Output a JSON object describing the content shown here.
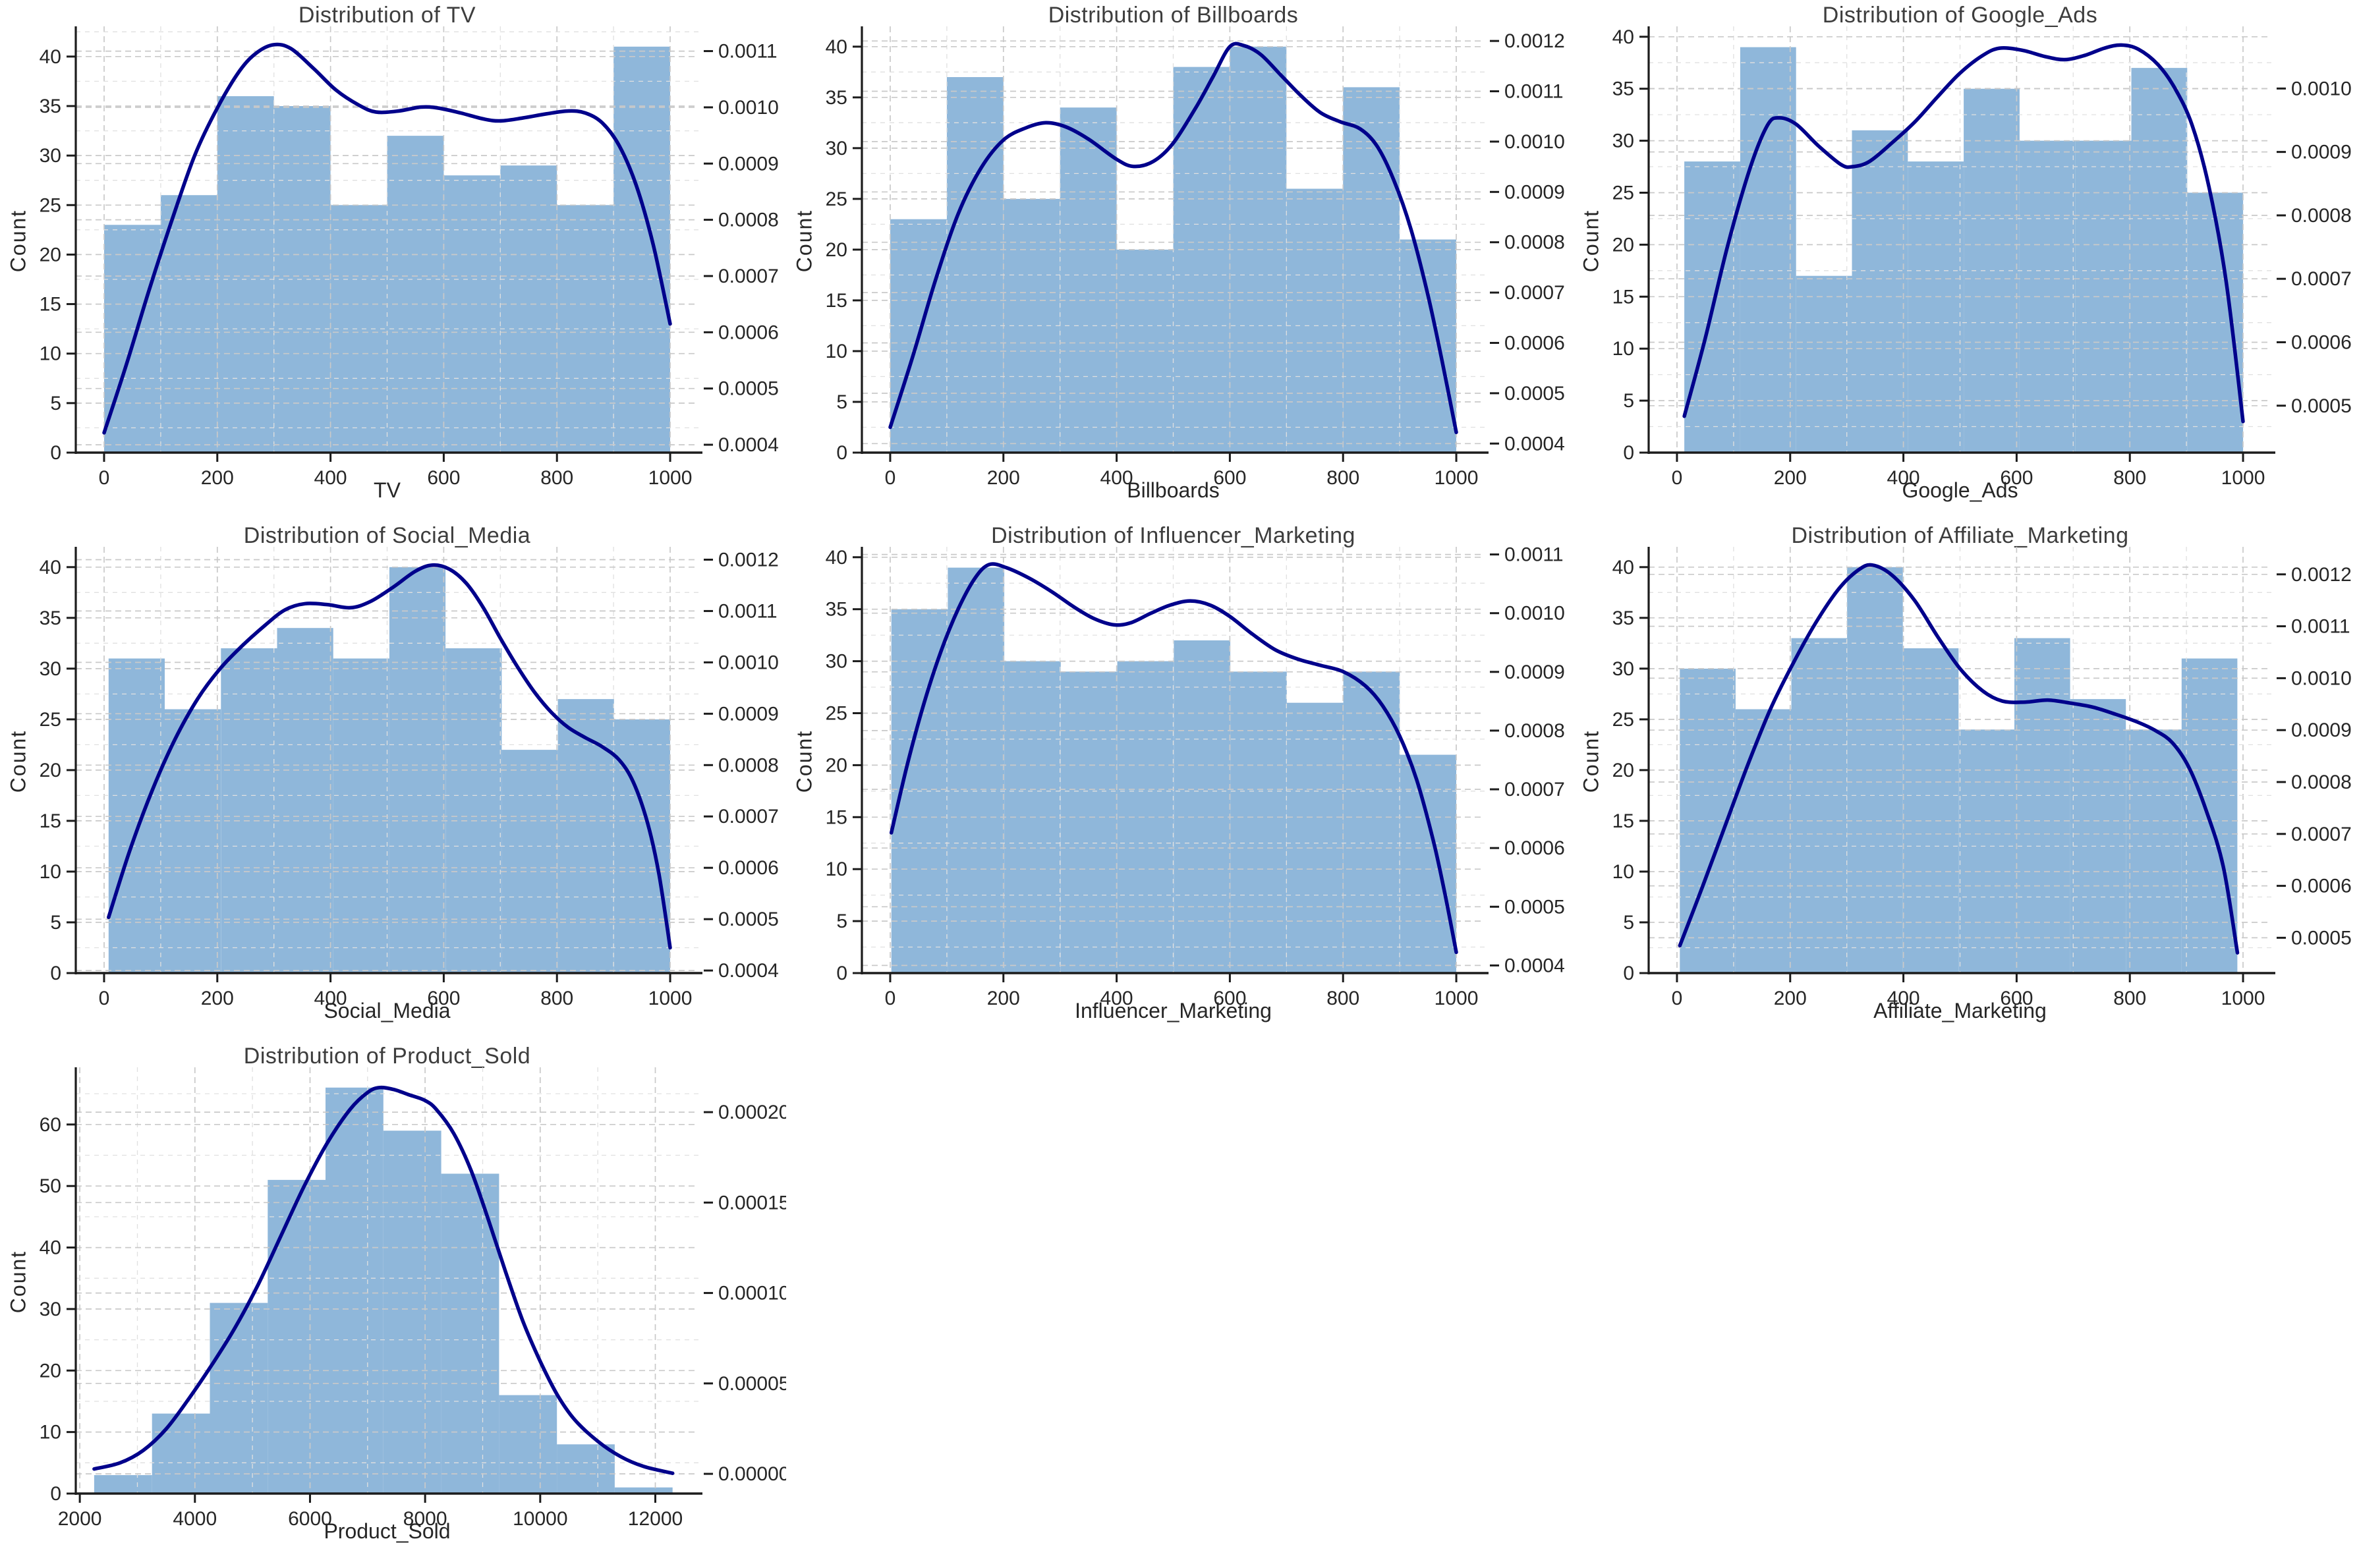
{
  "style": {
    "background": "#ffffff",
    "bar_color": "#8fb7da",
    "kde_color": "#00008b",
    "grid_major": "#c9c9c9",
    "grid_minor": "#e0e0e0",
    "spine_color": "#1c1c1c",
    "tick_text_color": "#262626",
    "title_color": "#3d3d3d"
  },
  "chart_data": [
    {
      "type": "bar",
      "subtype": "histogram_with_kde",
      "title": "Distribution of TV",
      "xlabel": "TV",
      "ylabel_left": "Count",
      "legend": "none",
      "grid": "dashed major and minor",
      "xlim": [
        -50,
        1050
      ],
      "x_ticks": [
        0,
        200,
        400,
        600,
        800,
        1000
      ],
      "x_minor_step": 100,
      "ylim_left": [
        0,
        43.05
      ],
      "y_ticks_left": [
        0,
        5,
        10,
        15,
        20,
        25,
        30,
        35,
        40
      ],
      "y_minor_step_left": 2.5,
      "ylim_right": [
        0.000386,
        0.001144
      ],
      "y_ticks_right": [
        0.0004,
        0.0005,
        0.0006,
        0.0007,
        0.0008,
        0.0009,
        0.001,
        0.0011
      ],
      "right_decimals": 4,
      "bin_start": 0,
      "bin_end": 1000,
      "counts": [
        23,
        26,
        36,
        35,
        25,
        32,
        28,
        29,
        25,
        41
      ],
      "kde_points_left_units": [
        [
          0,
          2
        ],
        [
          40,
          9
        ],
        [
          80,
          16.5
        ],
        [
          120,
          23.5
        ],
        [
          160,
          30
        ],
        [
          200,
          34.8
        ],
        [
          240,
          38.6
        ],
        [
          270,
          40.4
        ],
        [
          300,
          41.2
        ],
        [
          330,
          40.8
        ],
        [
          370,
          38.8
        ],
        [
          410,
          36.6
        ],
        [
          450,
          35.1
        ],
        [
          480,
          34.4
        ],
        [
          520,
          34.5
        ],
        [
          560,
          34.9
        ],
        [
          590,
          34.8
        ],
        [
          630,
          34.3
        ],
        [
          670,
          33.7
        ],
        [
          700,
          33.5
        ],
        [
          740,
          33.8
        ],
        [
          780,
          34.2
        ],
        [
          820,
          34.5
        ],
        [
          850,
          34.3
        ],
        [
          880,
          33.3
        ],
        [
          910,
          31
        ],
        [
          940,
          27
        ],
        [
          970,
          21
        ],
        [
          1000,
          13
        ]
      ]
    },
    {
      "type": "bar",
      "subtype": "histogram_with_kde",
      "title": "Distribution of Billboards",
      "xlabel": "Billboards",
      "ylabel_left": "Count",
      "legend": "none",
      "grid": "dashed major and minor",
      "xlim": [
        -50,
        1050
      ],
      "x_ticks": [
        0,
        200,
        400,
        600,
        800,
        1000
      ],
      "x_minor_step": 100,
      "ylim_left": [
        0,
        42
      ],
      "y_ticks_left": [
        0,
        5,
        10,
        15,
        20,
        25,
        30,
        35,
        40
      ],
      "y_minor_step_left": 2.5,
      "ylim_right": [
        0.000382,
        0.001229
      ],
      "y_ticks_right": [
        0.0004,
        0.0005,
        0.0006,
        0.0007,
        0.0008,
        0.0009,
        0.001,
        0.0011,
        0.0012
      ],
      "right_decimals": 4,
      "bin_start": 0,
      "bin_end": 1000,
      "counts": [
        23,
        37,
        25,
        34,
        20,
        38,
        40,
        26,
        36,
        21
      ],
      "kde_points_left_units": [
        [
          0,
          2.5
        ],
        [
          40,
          9.5
        ],
        [
          80,
          17
        ],
        [
          120,
          23.5
        ],
        [
          160,
          28
        ],
        [
          200,
          30.8
        ],
        [
          240,
          32
        ],
        [
          275,
          32.5
        ],
        [
          310,
          32.1
        ],
        [
          350,
          30.9
        ],
        [
          400,
          28.9
        ],
        [
          430,
          28.2
        ],
        [
          465,
          28.7
        ],
        [
          500,
          30.5
        ],
        [
          540,
          34
        ],
        [
          570,
          37
        ],
        [
          600,
          40
        ],
        [
          625,
          40.1
        ],
        [
          655,
          39.2
        ],
        [
          690,
          37.2
        ],
        [
          725,
          35.2
        ],
        [
          760,
          33.5
        ],
        [
          795,
          32.6
        ],
        [
          830,
          31.9
        ],
        [
          860,
          30.2
        ],
        [
          890,
          26.8
        ],
        [
          920,
          22
        ],
        [
          950,
          15.5
        ],
        [
          975,
          9
        ],
        [
          1000,
          2
        ]
      ]
    },
    {
      "type": "bar",
      "subtype": "histogram_with_kde",
      "title": "Distribution of Google_Ads",
      "xlabel": "Google_Ads",
      "ylabel_left": "Count",
      "legend": "none",
      "grid": "dashed major and minor",
      "xlim": [
        -50,
        1050
      ],
      "x_ticks": [
        0,
        200,
        400,
        600,
        800,
        1000
      ],
      "x_minor_step": 100,
      "ylim_left": [
        0,
        41
      ],
      "y_ticks_left": [
        0,
        5,
        10,
        15,
        20,
        25,
        30,
        35,
        40
      ],
      "y_minor_step_left": 2.5,
      "ylim_right": [
        0.000426,
        0.001098
      ],
      "y_ticks_right": [
        0.0005,
        0.0006,
        0.0007,
        0.0008,
        0.0009,
        0.001
      ],
      "right_decimals": 4,
      "bin_start": 13,
      "bin_end": 1000,
      "counts": [
        28,
        39,
        17,
        31,
        28,
        35,
        30,
        30,
        37,
        25
      ],
      "kde_points_left_units": [
        [
          13,
          3.5
        ],
        [
          50,
          11
        ],
        [
          90,
          20
        ],
        [
          130,
          27.5
        ],
        [
          160,
          31.5
        ],
        [
          180,
          32.2
        ],
        [
          210,
          31.6
        ],
        [
          250,
          29.5
        ],
        [
          290,
          27.7
        ],
        [
          310,
          27.5
        ],
        [
          340,
          28
        ],
        [
          380,
          29.8
        ],
        [
          420,
          31.8
        ],
        [
          460,
          34.2
        ],
        [
          500,
          36.5
        ],
        [
          540,
          38.2
        ],
        [
          570,
          38.9
        ],
        [
          610,
          38.7
        ],
        [
          650,
          38.1
        ],
        [
          685,
          37.8
        ],
        [
          720,
          38.2
        ],
        [
          755,
          38.9
        ],
        [
          785,
          39.2
        ],
        [
          815,
          38.8
        ],
        [
          850,
          37.3
        ],
        [
          880,
          35
        ],
        [
          910,
          31.5
        ],
        [
          940,
          25.5
        ],
        [
          970,
          16.5
        ],
        [
          1000,
          3
        ]
      ]
    },
    {
      "type": "bar",
      "subtype": "histogram_with_kde",
      "title": "Distribution of Social_Media",
      "xlabel": "Social_Media",
      "ylabel_left": "Count",
      "legend": "none",
      "grid": "dashed major and minor",
      "xlim": [
        -50,
        1050
      ],
      "x_ticks": [
        0,
        200,
        400,
        600,
        800,
        1000
      ],
      "x_minor_step": 100,
      "ylim_left": [
        0,
        42
      ],
      "y_ticks_left": [
        0,
        5,
        10,
        15,
        20,
        25,
        30,
        35,
        40
      ],
      "y_minor_step_left": 2.5,
      "ylim_right": [
        0.000395,
        0.001225
      ],
      "y_ticks_right": [
        0.0004,
        0.0005,
        0.0006,
        0.0007,
        0.0008,
        0.0009,
        0.001,
        0.0011,
        0.0012
      ],
      "right_decimals": 4,
      "bin_start": 8,
      "bin_end": 1000,
      "counts": [
        31,
        26,
        32,
        34,
        31,
        40,
        32,
        22,
        27,
        25
      ],
      "kde_points_left_units": [
        [
          8,
          5.5
        ],
        [
          45,
          12
        ],
        [
          85,
          18
        ],
        [
          125,
          23
        ],
        [
          165,
          27
        ],
        [
          205,
          30
        ],
        [
          245,
          32.3
        ],
        [
          285,
          34.3
        ],
        [
          320,
          35.8
        ],
        [
          355,
          36.4
        ],
        [
          395,
          36.3
        ],
        [
          435,
          36
        ],
        [
          470,
          36.6
        ],
        [
          510,
          38
        ],
        [
          550,
          39.6
        ],
        [
          580,
          40.2
        ],
        [
          610,
          39.8
        ],
        [
          640,
          38.4
        ],
        [
          670,
          36
        ],
        [
          700,
          33
        ],
        [
          730,
          30.2
        ],
        [
          760,
          27.7
        ],
        [
          790,
          25.7
        ],
        [
          820,
          24.2
        ],
        [
          850,
          23.2
        ],
        [
          880,
          22.3
        ],
        [
          910,
          21
        ],
        [
          935,
          18.8
        ],
        [
          960,
          14.8
        ],
        [
          980,
          9.8
        ],
        [
          1000,
          2.5
        ]
      ]
    },
    {
      "type": "bar",
      "subtype": "histogram_with_kde",
      "title": "Distribution of Influencer_Marketing",
      "xlabel": "Influencer_Marketing",
      "ylabel_left": "Count",
      "legend": "none",
      "grid": "dashed major and minor",
      "xlim": [
        -50,
        1050
      ],
      "x_ticks": [
        0,
        200,
        400,
        600,
        800,
        1000
      ],
      "x_minor_step": 100,
      "ylim_left": [
        0,
        41
      ],
      "y_ticks_left": [
        0,
        5,
        10,
        15,
        20,
        25,
        30,
        35,
        40
      ],
      "y_minor_step_left": 2.5,
      "ylim_right": [
        0.000387,
        0.001113
      ],
      "y_ticks_right": [
        0.0004,
        0.0005,
        0.0006,
        0.0007,
        0.0008,
        0.0009,
        0.001,
        0.0011
      ],
      "right_decimals": 4,
      "bin_start": 2,
      "bin_end": 1000,
      "counts": [
        35,
        39,
        30,
        29,
        30,
        32,
        29,
        26,
        29,
        21
      ],
      "kde_points_left_units": [
        [
          2,
          13.5
        ],
        [
          30,
          20
        ],
        [
          60,
          26
        ],
        [
          90,
          31
        ],
        [
          120,
          35
        ],
        [
          150,
          38
        ],
        [
          175,
          39.3
        ],
        [
          205,
          39
        ],
        [
          245,
          38
        ],
        [
          285,
          36.7
        ],
        [
          325,
          35.2
        ],
        [
          360,
          34.1
        ],
        [
          395,
          33.5
        ],
        [
          425,
          33.7
        ],
        [
          460,
          34.6
        ],
        [
          495,
          35.4
        ],
        [
          530,
          35.8
        ],
        [
          565,
          35.4
        ],
        [
          600,
          34.3
        ],
        [
          640,
          32.6
        ],
        [
          680,
          31.1
        ],
        [
          720,
          30.2
        ],
        [
          760,
          29.6
        ],
        [
          800,
          29
        ],
        [
          840,
          27.6
        ],
        [
          870,
          25.7
        ],
        [
          900,
          22.8
        ],
        [
          930,
          18.6
        ],
        [
          960,
          12.6
        ],
        [
          980,
          7.6
        ],
        [
          1000,
          2
        ]
      ]
    },
    {
      "type": "bar",
      "subtype": "histogram_with_kde",
      "title": "Distribution of Affiliate_Marketing",
      "xlabel": "Affiliate_Marketing",
      "ylabel_left": "Count",
      "legend": "none",
      "grid": "dashed major and minor",
      "xlim": [
        -50,
        1050
      ],
      "x_ticks": [
        0,
        200,
        400,
        600,
        800,
        1000
      ],
      "x_minor_step": 100,
      "ylim_left": [
        0,
        42
      ],
      "y_ticks_left": [
        0,
        5,
        10,
        15,
        20,
        25,
        30,
        35,
        40
      ],
      "y_minor_step_left": 2.5,
      "ylim_right": [
        0.000432,
        0.001253
      ],
      "y_ticks_right": [
        0.0005,
        0.0006,
        0.0007,
        0.0008,
        0.0009,
        0.001,
        0.0011,
        0.0012
      ],
      "right_decimals": 4,
      "bin_start": 5,
      "bin_end": 990,
      "counts": [
        30,
        26,
        33,
        40,
        32,
        24,
        33,
        27,
        24,
        31
      ],
      "kde_points_left_units": [
        [
          5,
          2.7
        ],
        [
          45,
          8.5
        ],
        [
          85,
          14.5
        ],
        [
          125,
          20.5
        ],
        [
          165,
          26
        ],
        [
          205,
          30.5
        ],
        [
          245,
          34.5
        ],
        [
          285,
          37.8
        ],
        [
          320,
          39.7
        ],
        [
          345,
          40.2
        ],
        [
          380,
          39.2
        ],
        [
          420,
          36.7
        ],
        [
          460,
          33.2
        ],
        [
          500,
          30
        ],
        [
          540,
          27.8
        ],
        [
          575,
          26.8
        ],
        [
          615,
          26.7
        ],
        [
          655,
          26.9
        ],
        [
          695,
          26.6
        ],
        [
          735,
          26.2
        ],
        [
          775,
          25.5
        ],
        [
          815,
          24.7
        ],
        [
          845,
          23.9
        ],
        [
          875,
          22.7
        ],
        [
          905,
          20.2
        ],
        [
          935,
          16
        ],
        [
          965,
          10.5
        ],
        [
          990,
          2
        ]
      ]
    },
    {
      "type": "bar",
      "subtype": "histogram_with_kde",
      "title": "Distribution of Product_Sold",
      "xlabel": "Product_Sold",
      "ylabel_left": "Count",
      "legend": "none",
      "grid": "dashed major and minor",
      "xlim": [
        1930,
        12750
      ],
      "x_ticks": [
        2000,
        4000,
        6000,
        8000,
        10000,
        12000
      ],
      "x_minor_step": 1000,
      "ylim_left": [
        0,
        69.3
      ],
      "y_ticks_left": [
        0,
        10,
        20,
        30,
        40,
        50,
        60
      ],
      "y_minor_step_left": 5,
      "ylim_right": [
        -1.09e-05,
        0.0002248
      ],
      "y_ticks_right": [
        0.0,
        5e-05,
        0.0001,
        0.00015,
        0.0002
      ],
      "right_decimals": 5,
      "bin_start": 2250,
      "bin_end": 12300,
      "counts": [
        3,
        13,
        31,
        51,
        66,
        59,
        52,
        16,
        8,
        1
      ],
      "kde_points_left_units": [
        [
          2250,
          4
        ],
        [
          2700,
          5
        ],
        [
          3100,
          7
        ],
        [
          3500,
          10.5
        ],
        [
          3900,
          15.5
        ],
        [
          4300,
          21
        ],
        [
          4700,
          27
        ],
        [
          5100,
          34
        ],
        [
          5500,
          42
        ],
        [
          5900,
          50
        ],
        [
          6300,
          57
        ],
        [
          6700,
          62.5
        ],
        [
          7000,
          65.2
        ],
        [
          7200,
          66
        ],
        [
          7450,
          65.7
        ],
        [
          7700,
          64.9
        ],
        [
          8000,
          63.9
        ],
        [
          8200,
          62.4
        ],
        [
          8500,
          58.5
        ],
        [
          8800,
          52.5
        ],
        [
          9100,
          44.5
        ],
        [
          9400,
          36
        ],
        [
          9700,
          28
        ],
        [
          10000,
          21.5
        ],
        [
          10300,
          16
        ],
        [
          10600,
          12
        ],
        [
          11000,
          8.5
        ],
        [
          11400,
          6
        ],
        [
          11800,
          4.4
        ],
        [
          12300,
          3.3
        ]
      ]
    }
  ]
}
